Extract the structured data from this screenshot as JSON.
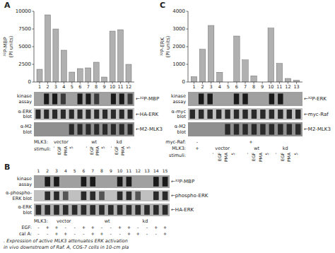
{
  "chart_data": [
    {
      "type": "bar",
      "title": "A",
      "ylabel": "³²P-MBP\n(PI units)",
      "categories": [
        "1",
        "2",
        "3",
        "4",
        "5",
        "6",
        "7",
        "8",
        "9",
        "10",
        "11",
        "12"
      ],
      "values": [
        1800,
        9500,
        7500,
        4500,
        1400,
        1900,
        2000,
        2800,
        700,
        7200,
        7400,
        2500
      ],
      "color": "#b0b0b0",
      "ylim": [
        0,
        10000
      ],
      "yticks": [
        0,
        2500,
        5000,
        7500,
        10000
      ],
      "annotations": [
        "kinase\nassay",
        "α-ERK\nblot",
        "α-M2\nblot",
        "←³²P-MBP",
        "←HA-ERK",
        "←M2-MLK3",
        "MLK3:",
        "vector",
        "wt",
        "kd",
        "stimuli:",
        "-",
        "EGF",
        "PMA",
        "5"
      ]
    },
    {
      "type": "blot",
      "title": "B",
      "categories": [
        "1",
        "2",
        "3",
        "4",
        "5",
        "6",
        "7",
        "8",
        "9",
        "10",
        "11",
        "12",
        "13",
        "14",
        "15"
      ],
      "annotations": [
        "kinase\nassay",
        "α-phospho-\nERK blot",
        "α-ERK\nblot",
        "←³²P-MBP",
        "←phospho-ERK",
        "←HA-ERK",
        "MLK3:",
        "vector",
        "wt",
        "kd",
        "EGF:",
        "cal A:",
        [
          "-",
          "+",
          "+",
          "-",
          "-",
          "+",
          "+",
          "-",
          "-",
          "+",
          "+",
          "-",
          "-",
          "+",
          "+"
        ],
        [
          "-",
          "-",
          "+",
          "+",
          "-",
          "-",
          "+",
          "+",
          "-",
          "-",
          "+",
          "+",
          "-",
          "-",
          "+"
        ],
        ". Expression of active MLK3 attenuates ERK activation",
        "in vivo downstream of Raf. A, COS-7 cells in 10-cm pla"
      ]
    },
    {
      "type": "bar",
      "title": "C",
      "ylabel": "³²P-ERK\n(PI units)",
      "categories": [
        "1",
        "2",
        "3",
        "4",
        "5",
        "6",
        "7",
        "8",
        "9",
        "10",
        "11",
        "12",
        "13"
      ],
      "values": [
        300,
        1850,
        3200,
        550,
        0,
        2600,
        1250,
        350,
        0,
        3050,
        1050,
        200,
        100
      ],
      "color": "#b0b0b0",
      "ylim": [
        0,
        4000
      ],
      "yticks": [
        0,
        1000,
        2000,
        3000,
        4000
      ],
      "annotations": [
        "kinase\nassay",
        "α-myc\nblot",
        "α-M2\nblot",
        "←³²P-ERK",
        "←myc-Raf",
        "←M2-MLK3",
        "myc-Raf:",
        "-",
        "+",
        "MLK3:",
        "+",
        "vector",
        "wt",
        "kd",
        "stimuli:",
        "-",
        "EGF",
        "PMA",
        "5"
      ]
    }
  ]
}
